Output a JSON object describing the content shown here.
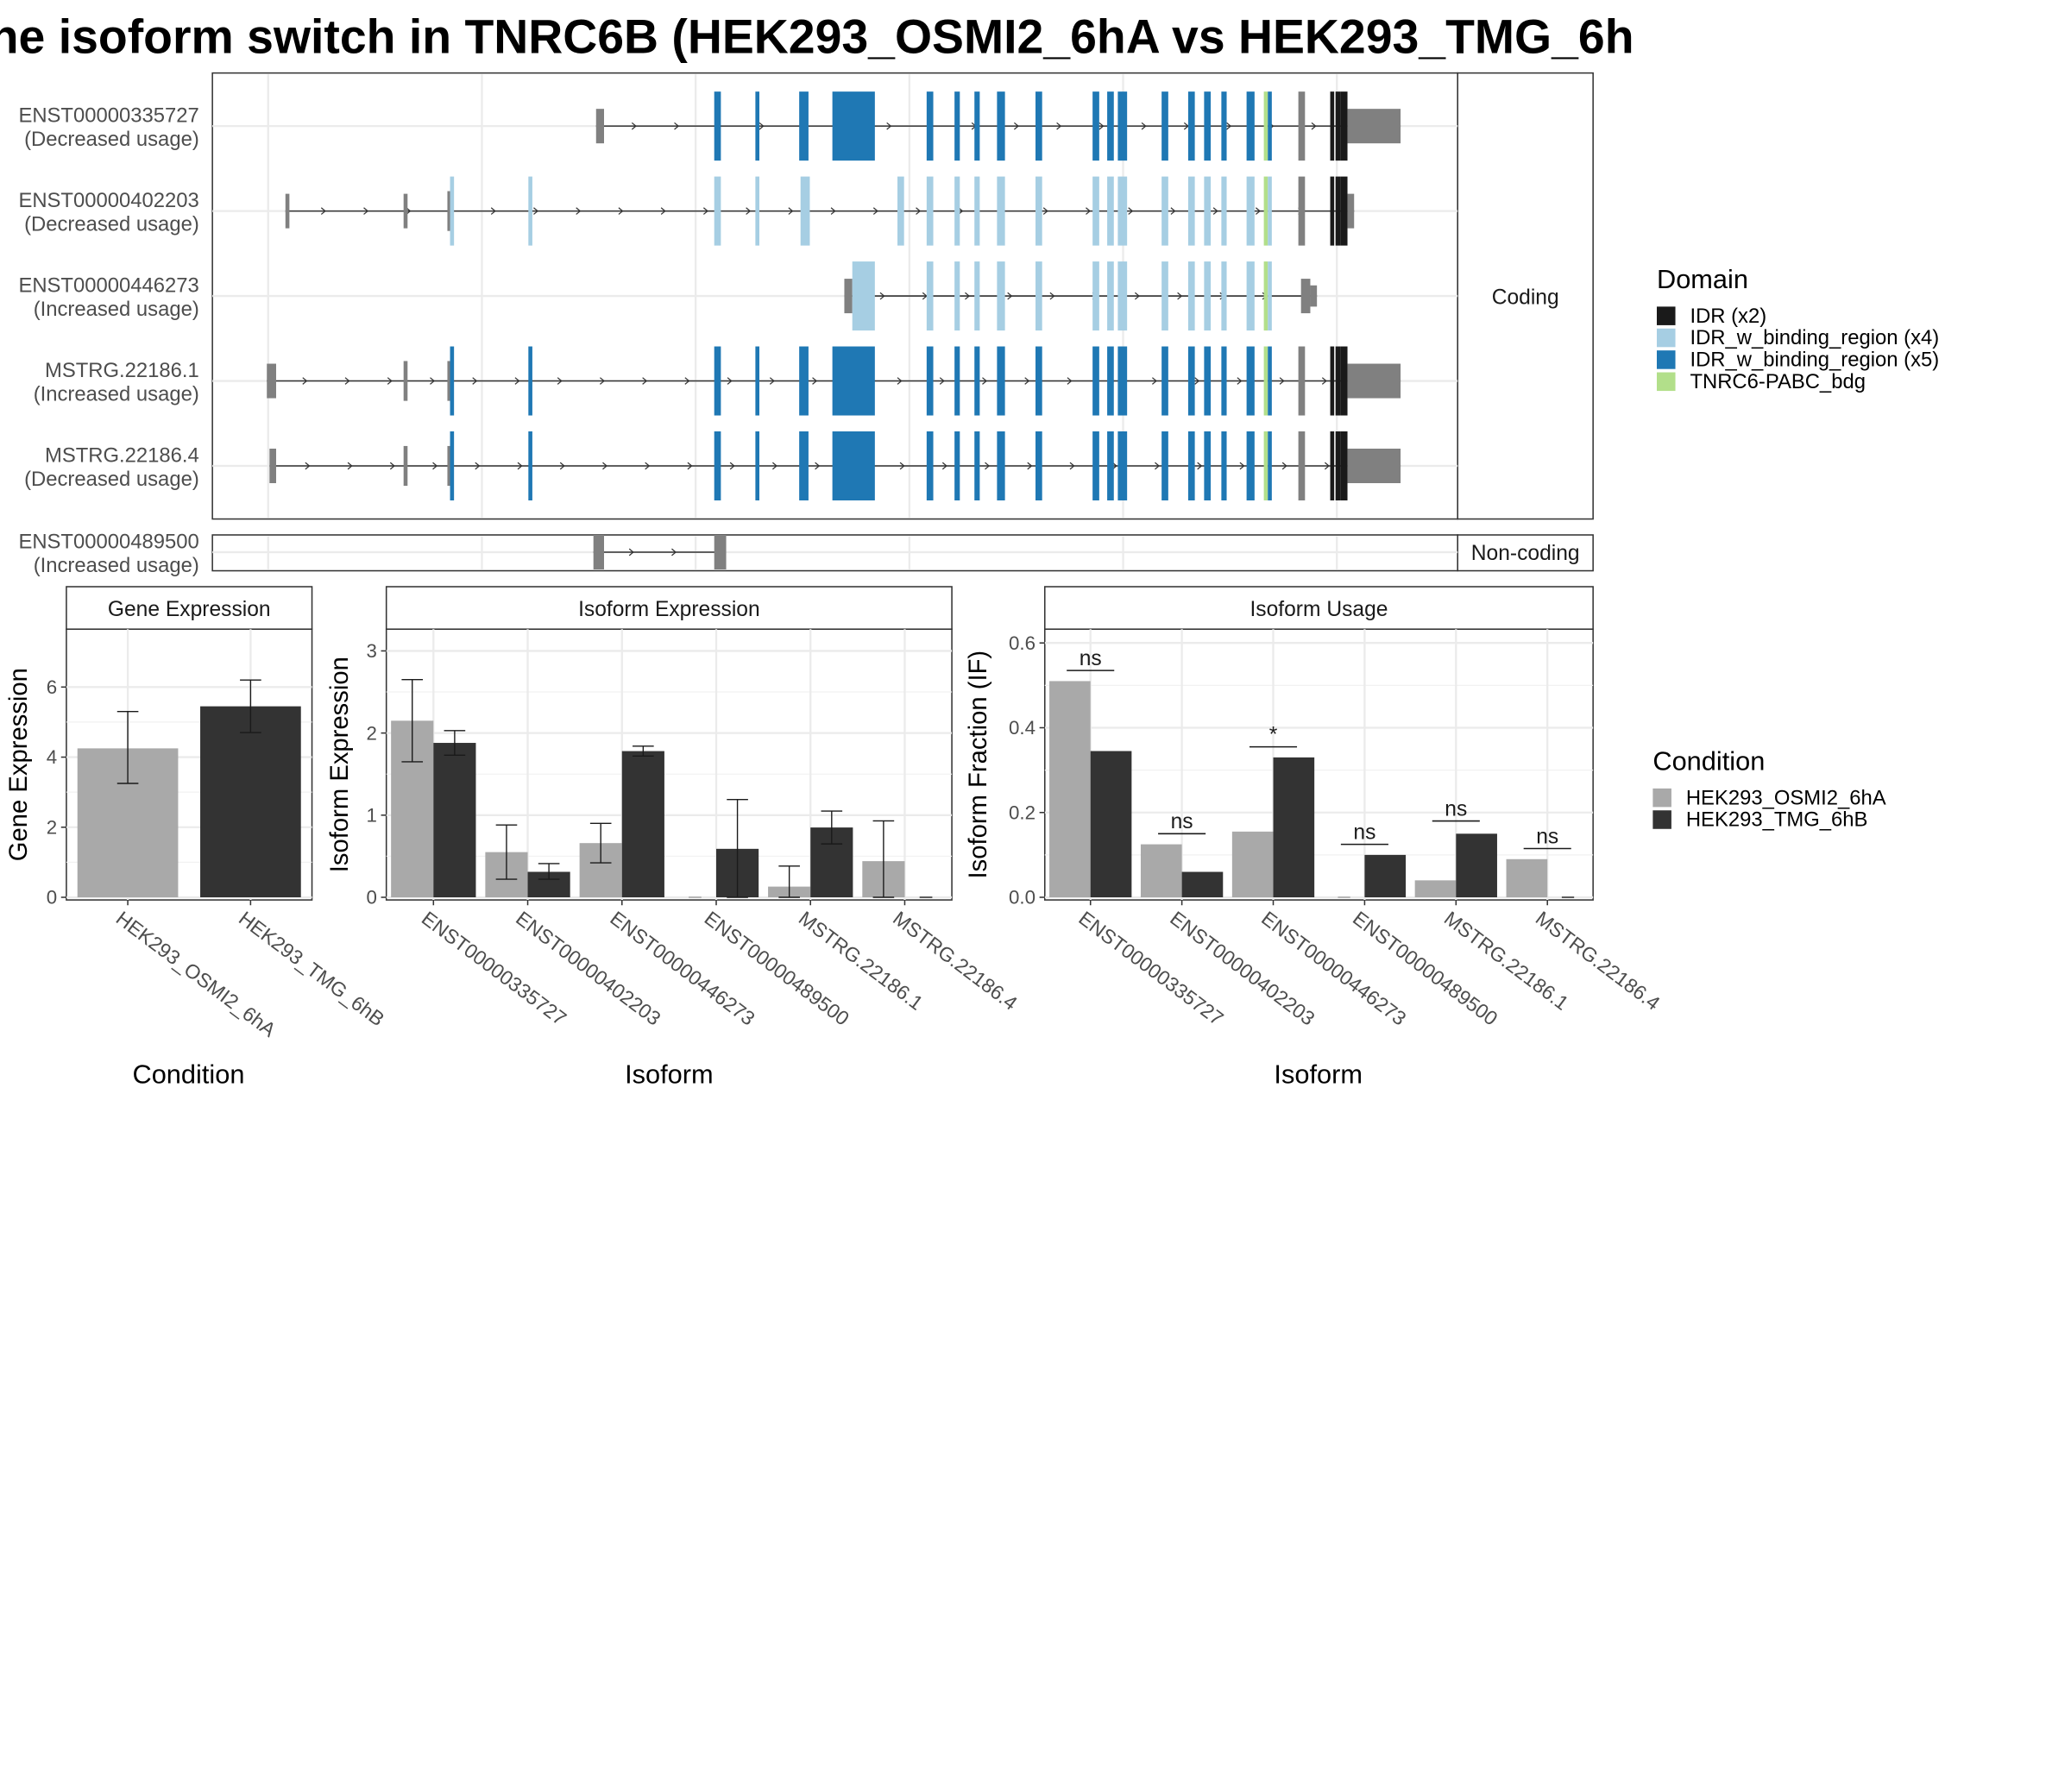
{
  "title": "ne isoform switch in TNRC6B (HEK293_OSMI2_6hA vs HEK293_TMG_6h",
  "colors": {
    "idr": "#1a1a1a",
    "idr_x4": "#a6cee3",
    "idr_x5": "#1f78b4",
    "pabc": "#b2df8a",
    "utr": "#808080",
    "cond_a": "#a9a9a9",
    "cond_b": "#333333"
  },
  "structure": {
    "coding_strip": "Coding",
    "noncoding_strip": "Non-coding",
    "transcripts": [
      {
        "id": "ENST00000335727",
        "usage": "(Decreased usage)"
      },
      {
        "id": "ENST00000402203",
        "usage": "(Decreased usage)"
      },
      {
        "id": "ENST00000446273",
        "usage": "(Increased usage)"
      },
      {
        "id": "MSTRG.22186.1",
        "usage": "(Increased usage)"
      },
      {
        "id": "MSTRG.22186.4",
        "usage": "(Decreased usage)"
      },
      {
        "id": "ENST00000489500",
        "usage": "(Increased usage)"
      }
    ]
  },
  "legend_domain": {
    "title": "Domain",
    "items": [
      {
        "label": "IDR (x2)",
        "color": "#1a1a1a"
      },
      {
        "label": "IDR_w_binding_region (x4)",
        "color": "#a6cee3"
      },
      {
        "label": "IDR_w_binding_region (x5)",
        "color": "#1f78b4"
      },
      {
        "label": "TNRC6-PABC_bdg",
        "color": "#b2df8a"
      }
    ]
  },
  "legend_condition": {
    "title": "Condition",
    "items": [
      {
        "label": "HEK293_OSMI2_6hA",
        "color": "#a9a9a9"
      },
      {
        "label": "HEK293_TMG_6hB",
        "color": "#333333"
      }
    ]
  },
  "chart_data": [
    {
      "type": "bar",
      "strip": "Gene Expression",
      "xlabel": "Condition",
      "ylabel": "Gene Expression",
      "ylim": [
        0,
        7.5
      ],
      "yticks": [
        0,
        2,
        4,
        6
      ],
      "categories": [
        "HEK293_OSMI2_6hA",
        "HEK293_TMG_6hB"
      ],
      "values": [
        4.25,
        5.45
      ],
      "error_low": [
        3.25,
        4.7
      ],
      "error_high": [
        5.3,
        6.2
      ]
    },
    {
      "type": "bar",
      "strip": "Isoform Expression",
      "xlabel": "Isoform",
      "ylabel": "Isoform Expression",
      "ylim": [
        0,
        3.2
      ],
      "yticks": [
        0,
        1,
        2,
        3
      ],
      "categories": [
        "ENST00000335727",
        "ENST00000402203",
        "ENST00000446273",
        "ENST00000489500",
        "MSTRG.22186.1",
        "MSTRG.22186.4"
      ],
      "series": [
        {
          "name": "HEK293_OSMI2_6hA",
          "values": [
            2.15,
            0.55,
            0.66,
            0.0,
            0.13,
            0.44
          ],
          "error_low": [
            1.65,
            0.22,
            0.42,
            null,
            0.0,
            0.0
          ],
          "error_high": [
            2.65,
            0.88,
            0.9,
            null,
            0.38,
            0.93
          ]
        },
        {
          "name": "HEK293_TMG_6hB",
          "values": [
            1.88,
            0.31,
            1.78,
            0.59,
            0.85,
            0.0
          ],
          "error_low": [
            1.73,
            0.22,
            1.72,
            0.0,
            0.65,
            null
          ],
          "error_high": [
            2.03,
            0.41,
            1.84,
            1.19,
            1.05,
            null
          ]
        }
      ]
    },
    {
      "type": "bar",
      "strip": "Isoform Usage",
      "xlabel": "Isoform",
      "ylabel": "Isoform Fraction (IF)",
      "ylim": [
        0,
        0.62
      ],
      "yticks": [
        0.0,
        0.2,
        0.4,
        0.6
      ],
      "ytick_labels": [
        "0.0",
        "0.2",
        "0.4",
        "0.6"
      ],
      "categories": [
        "ENST00000335727",
        "ENST00000402203",
        "ENST00000446273",
        "ENST00000489500",
        "MSTRG.22186.1",
        "MSTRG.22186.4"
      ],
      "series": [
        {
          "name": "HEK293_OSMI2_6hA",
          "values": [
            0.51,
            0.125,
            0.155,
            0.0,
            0.04,
            0.09
          ]
        },
        {
          "name": "HEK293_TMG_6hB",
          "values": [
            0.345,
            0.06,
            0.33,
            0.1,
            0.15,
            0.0
          ]
        }
      ],
      "significance": [
        "ns",
        "ns",
        "*",
        "ns",
        "ns",
        "ns"
      ],
      "significance_y": [
        0.535,
        0.15,
        0.355,
        0.125,
        0.18,
        0.115
      ]
    }
  ]
}
